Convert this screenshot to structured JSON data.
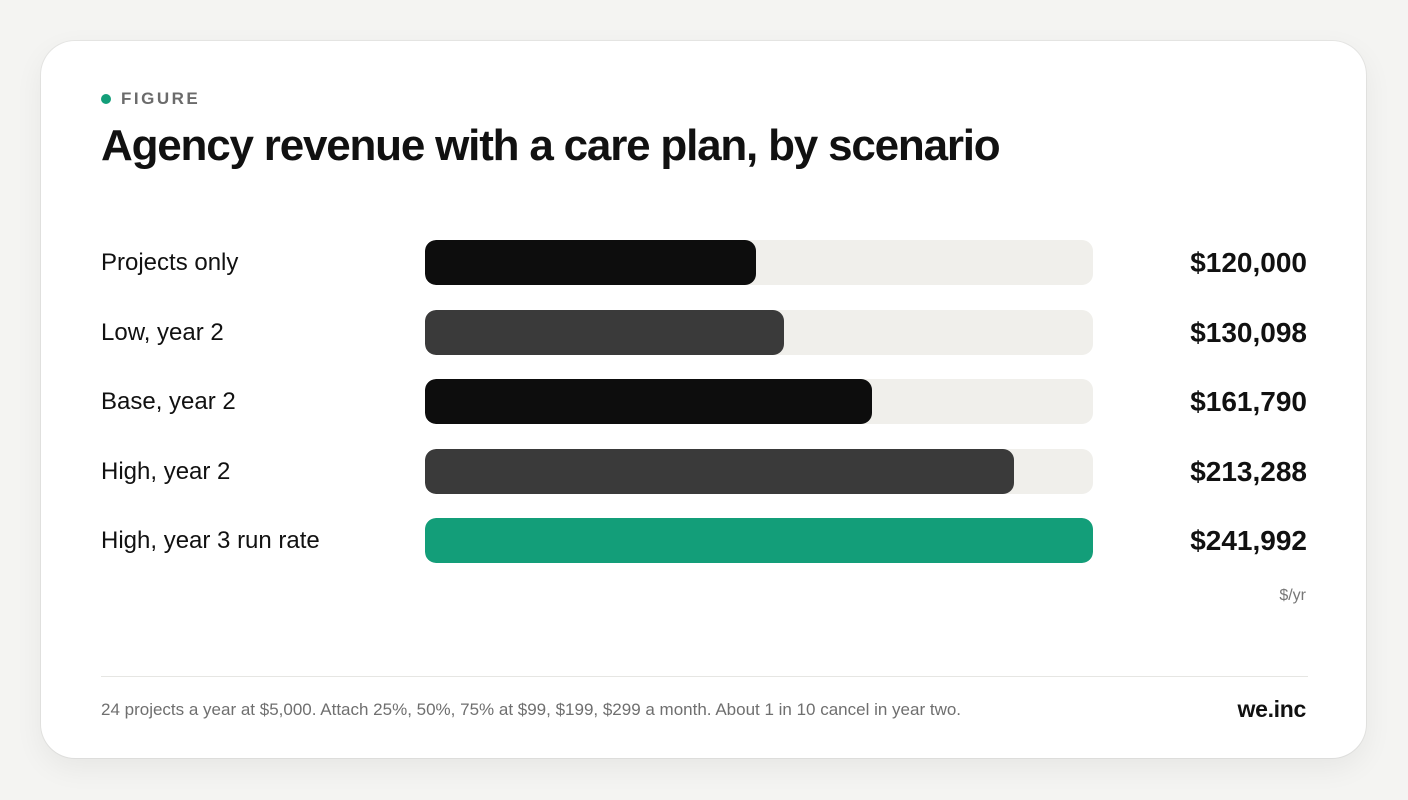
{
  "figure_label": "FIGURE",
  "title": "Agency revenue with a care plan, by scenario",
  "unit_label": "$/yr",
  "footnote": "24 projects a year at $5,000. Attach 25%, 50%, 75% at $99, $199, $299 a month. About 1 in 10 cancel in year two.",
  "brand": "we.inc",
  "colors": {
    "accent": "#139e79",
    "black": "#0d0d0d",
    "dark": "#3a3a3a",
    "track": "#f0efeb"
  },
  "chart_data": {
    "type": "bar",
    "orientation": "horizontal",
    "title": "Agency revenue with a care plan, by scenario",
    "xlim": [
      0,
      241992
    ],
    "grid": false,
    "categories": [
      "Projects only",
      "Low, year 2",
      "Base, year 2",
      "High, year 2",
      "High, year 3 run rate"
    ],
    "values": [
      120000,
      130098,
      161790,
      213288,
      241992
    ],
    "value_labels": [
      "$120,000",
      "$130,098",
      "$161,790",
      "$213,288",
      "$241,992"
    ],
    "bar_colors": [
      "#0d0d0d",
      "#3a3a3a",
      "#0d0d0d",
      "#3a3a3a",
      "#139e79"
    ]
  }
}
